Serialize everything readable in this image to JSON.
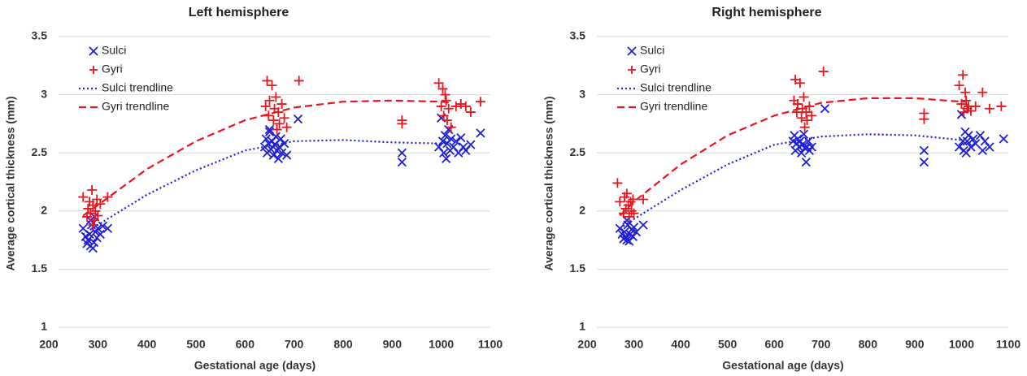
{
  "chart_data": [
    {
      "type": "scatter",
      "title": "Left hemisphere",
      "xlabel": "Gestational age (days)",
      "ylabel": "Average cortical thickness (mm)",
      "xlim": [
        200,
        1100
      ],
      "xticks": [
        200,
        300,
        400,
        500,
        600,
        700,
        800,
        900,
        1000,
        1100
      ],
      "ylim": [
        1,
        3.5
      ],
      "yticks": [
        1,
        1.5,
        2,
        2.5,
        3,
        3.5
      ],
      "grid": true,
      "legend": "upper left",
      "series": [
        {
          "name": "Sulci",
          "color": "#1f1fd6",
          "marker": "x",
          "x": [
            270,
            275,
            278,
            280,
            283,
            285,
            287,
            290,
            292,
            295,
            298,
            300,
            305,
            310,
            320,
            285,
            293,
            640,
            643,
            645,
            648,
            650,
            653,
            655,
            658,
            660,
            663,
            665,
            668,
            670,
            673,
            675,
            680,
            685,
            708,
            650,
            920,
            920,
            995,
            1000,
            1003,
            1005,
            1008,
            1010,
            1012,
            1015,
            1018,
            1020,
            1025,
            1030,
            1035,
            1040,
            1045,
            1050,
            1060,
            1080
          ],
          "y": [
            1.85,
            1.78,
            1.72,
            1.75,
            1.8,
            1.7,
            1.88,
            1.68,
            1.73,
            1.82,
            1.77,
            1.85,
            1.8,
            1.87,
            1.85,
            1.92,
            1.95,
            2.55,
            2.62,
            2.5,
            2.58,
            2.68,
            2.53,
            2.6,
            2.48,
            2.57,
            2.64,
            2.52,
            2.45,
            2.55,
            2.62,
            2.5,
            2.58,
            2.48,
            2.79,
            2.7,
            2.5,
            2.42,
            2.55,
            2.8,
            2.6,
            2.5,
            2.65,
            2.45,
            2.58,
            2.7,
            2.52,
            2.62,
            2.55,
            2.6,
            2.5,
            2.63,
            2.55,
            2.52,
            2.57,
            2.67
          ]
        },
        {
          "name": "Gyri",
          "color": "#e8141e",
          "marker": "+",
          "x": [
            270,
            278,
            280,
            283,
            285,
            288,
            290,
            293,
            295,
            298,
            300,
            305,
            320,
            290,
            642,
            645,
            648,
            650,
            655,
            658,
            660,
            663,
            665,
            668,
            670,
            675,
            680,
            685,
            710,
            920,
            920,
            995,
            1000,
            1003,
            1005,
            1008,
            1010,
            1012,
            1015,
            1020,
            1030,
            1040,
            1050,
            1060,
            1080
          ],
          "y": [
            2.12,
            1.95,
            2.02,
            2.08,
            1.98,
            2.18,
            2.05,
            1.92,
            2.0,
            2.1,
            1.96,
            2.06,
            2.12,
            1.88,
            2.9,
            3.12,
            2.82,
            2.95,
            3.08,
            2.78,
            2.88,
            2.98,
            2.7,
            2.85,
            2.75,
            2.92,
            2.8,
            2.72,
            3.12,
            2.78,
            2.75,
            3.1,
            2.9,
            3.05,
            2.82,
            3.0,
            2.95,
            2.78,
            2.88,
            2.72,
            2.9,
            2.92,
            2.9,
            2.85,
            2.94
          ]
        },
        {
          "name": "Sulci trendline",
          "color": "#1f1fd6",
          "line": "dotted",
          "x": [
            270,
            300,
            400,
            500,
            600,
            700,
            800,
            900,
            1000,
            1010
          ],
          "y": [
            1.8,
            1.88,
            2.14,
            2.35,
            2.52,
            2.6,
            2.61,
            2.59,
            2.58,
            2.59
          ]
        },
        {
          "name": "Gyri trendline",
          "color": "#e8141e",
          "line": "dashed",
          "x": [
            270,
            300,
            400,
            500,
            600,
            700,
            800,
            900,
            1000,
            1020
          ],
          "y": [
            1.96,
            2.05,
            2.36,
            2.6,
            2.78,
            2.89,
            2.94,
            2.95,
            2.94,
            2.93
          ]
        }
      ]
    },
    {
      "type": "scatter",
      "title": "Right hemisphere",
      "xlabel": "Gestational age (days)",
      "ylabel": "Average cortical thickness (mm)",
      "xlim": [
        200,
        1100
      ],
      "xticks": [
        200,
        300,
        400,
        500,
        600,
        700,
        800,
        900,
        1000,
        1100
      ],
      "ylim": [
        1,
        3.5
      ],
      "yticks": [
        1,
        1.5,
        2,
        2.5,
        3,
        3.5
      ],
      "grid": true,
      "legend": "upper left",
      "series": [
        {
          "name": "Sulci",
          "color": "#1f1fd6",
          "marker": "x",
          "x": [
            270,
            275,
            278,
            280,
            283,
            285,
            287,
            290,
            292,
            295,
            298,
            300,
            305,
            320,
            285,
            640,
            643,
            645,
            648,
            650,
            653,
            655,
            658,
            660,
            663,
            665,
            668,
            670,
            673,
            675,
            680,
            708,
            920,
            920,
            995,
            1000,
            1003,
            1005,
            1008,
            1010,
            1012,
            1015,
            1020,
            1025,
            1030,
            1040,
            1045,
            1050,
            1060,
            1090
          ],
          "y": [
            1.85,
            1.8,
            1.76,
            1.82,
            1.78,
            1.75,
            1.88,
            1.74,
            1.8,
            1.84,
            1.78,
            1.86,
            1.82,
            1.88,
            1.92,
            2.6,
            2.65,
            2.52,
            2.58,
            2.62,
            2.55,
            2.6,
            2.5,
            2.57,
            2.66,
            2.54,
            2.42,
            2.55,
            2.6,
            2.52,
            2.55,
            2.88,
            2.52,
            2.42,
            2.55,
            2.83,
            2.6,
            2.52,
            2.68,
            2.5,
            2.6,
            2.65,
            2.55,
            2.62,
            2.58,
            2.65,
            2.52,
            2.6,
            2.55,
            2.62
          ]
        },
        {
          "name": "Gyri",
          "color": "#e8141e",
          "marker": "+",
          "x": [
            265,
            270,
            278,
            280,
            283,
            285,
            288,
            290,
            293,
            295,
            298,
            300,
            320,
            642,
            645,
            648,
            650,
            655,
            658,
            660,
            663,
            665,
            668,
            670,
            675,
            680,
            705,
            920,
            920,
            995,
            1000,
            1003,
            1005,
            1008,
            1010,
            1012,
            1015,
            1020,
            1030,
            1045,
            1060,
            1085
          ],
          "y": [
            2.24,
            2.08,
            1.98,
            2.12,
            2.02,
            2.15,
            2.05,
            1.95,
            2.08,
            2.0,
            2.1,
            1.98,
            2.1,
            2.95,
            3.13,
            2.85,
            2.92,
            3.1,
            2.8,
            2.88,
            2.98,
            2.72,
            2.85,
            2.78,
            2.9,
            2.82,
            3.2,
            2.84,
            2.79,
            3.08,
            2.92,
            3.17,
            2.85,
            3.02,
            2.95,
            2.88,
            2.9,
            2.86,
            2.9,
            3.02,
            2.88,
            2.9
          ]
        },
        {
          "name": "Sulci trendline",
          "color": "#1f1fd6",
          "line": "dotted",
          "x": [
            270,
            300,
            400,
            500,
            600,
            700,
            800,
            900,
            1000,
            1010
          ],
          "y": [
            1.85,
            1.93,
            2.18,
            2.4,
            2.57,
            2.64,
            2.66,
            2.65,
            2.61,
            2.61
          ]
        },
        {
          "name": "Gyri trendline",
          "color": "#e8141e",
          "line": "dashed",
          "x": [
            270,
            300,
            400,
            500,
            600,
            700,
            800,
            900,
            1000,
            1010
          ],
          "y": [
            1.96,
            2.08,
            2.4,
            2.65,
            2.82,
            2.93,
            2.97,
            2.97,
            2.94,
            2.94
          ]
        }
      ]
    }
  ]
}
